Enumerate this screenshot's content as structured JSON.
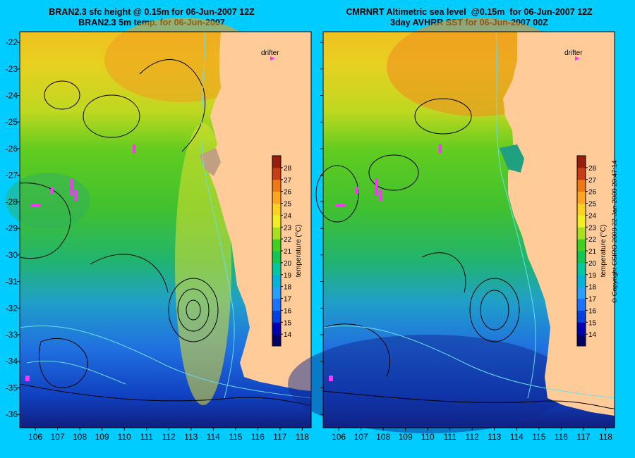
{
  "panels": [
    {
      "title_line1": "BRAN2.3 sfc height @ 0.15m for 06-Jun-2007 12Z",
      "title_line2": "BRAN2.3 5m temp. for 06-Jun-2007"
    },
    {
      "title_line1": "CMRNRT Altimetric sea level  @0.15m  for 06-Jun-2007 12Z",
      "title_line2": "3day AVHRR SST for 06-Jun-2007 00Z"
    }
  ],
  "legend": {
    "drifter_label": "drifter",
    "drifter_color": "#ff33ff"
  },
  "colorbar": {
    "label": "temperature (°C)",
    "ticks": [
      "14",
      "15",
      "16",
      "17",
      "18",
      "19",
      "20",
      "21",
      "22",
      "23",
      "24",
      "25",
      "26",
      "27",
      "28"
    ],
    "colors": [
      "#000066",
      "#0000b3",
      "#0040e0",
      "#1a73ff",
      "#26a0ff",
      "#00b4dc",
      "#00c8a0",
      "#10c850",
      "#40d020",
      "#a8e020",
      "#f0f020",
      "#ffd21e",
      "#ffa51e",
      "#f07814",
      "#c83c14",
      "#961e0a"
    ]
  },
  "axes": {
    "x_ticks": [
      "106",
      "107",
      "108",
      "109",
      "110",
      "111",
      "112",
      "113",
      "114",
      "115",
      "116",
      "117",
      "118"
    ],
    "y_ticks": [
      "-22",
      "-23",
      "-24",
      "-25",
      "-26",
      "-27",
      "-28",
      "-29",
      "-30",
      "-31",
      "-32",
      "-33",
      "-34",
      "-35",
      "-36"
    ]
  },
  "copyright": "© Copyright CSIRO 2009   22-Jan-2009 20:47:14",
  "colors": {
    "background": "#00ccff",
    "land": "#ffcc99"
  }
}
